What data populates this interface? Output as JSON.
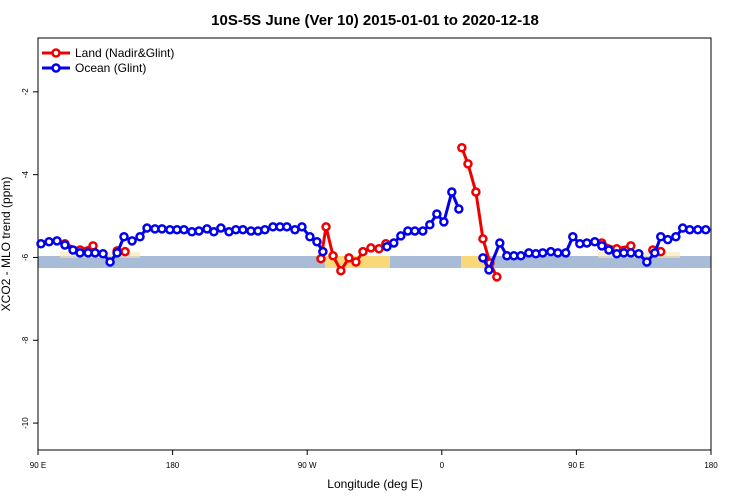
{
  "chart_data": {
    "type": "line",
    "title": "10S-5S June (Ver 10)   2015-01-01 to 2020-12-18",
    "x_label": "Longitude (deg E)",
    "y_label": "XCO2 - MLO trend (ppm)",
    "xlim": [
      90,
      540
    ],
    "ylim": [
      -10.65,
      -0.7
    ],
    "xticks": [
      {
        "value": 90,
        "label": "90 E"
      },
      180,
      {
        "value": 270,
        "label": "90 W"
      },
      {
        "value": 360,
        "label": "0"
      },
      {
        "value": 450,
        "label": "90 E"
      },
      {
        "value": 540,
        "label": "180"
      }
    ],
    "yticks": [
      -2,
      -4,
      -6,
      -8,
      -10
    ],
    "legend": "top-left",
    "series": [
      {
        "name": "Land (Nadir&Glint)",
        "color": "#ee0000",
        "x": [
          108.0,
          118.1,
          126.8,
          142.9,
          148.2,
          279.2,
          282.6,
          287.3,
          292.5,
          297.9,
          302.6,
          307.3,
          312.6,
          318.0,
          322.6,
          373.4,
          377.5,
          382.8,
          387.5,
          392.2,
          396.8,
          467.0,
          477.0,
          486.4,
          501.1,
          506.4
        ],
        "values": [
          -5.67,
          -5.82,
          -5.72,
          -5.84,
          -5.86,
          -6.03,
          -5.26,
          -5.96,
          -6.32,
          -6.01,
          -6.11,
          -5.86,
          -5.77,
          -5.79,
          -5.67,
          -3.35,
          -3.74,
          -4.42,
          -5.55,
          -6.13,
          -6.47,
          -5.65,
          -5.79,
          -5.72,
          -5.82,
          -5.86
        ]
      },
      {
        "name": "Ocean (Glint)",
        "color": "#0000ee",
        "x": [
          92.0,
          97.4,
          102.7,
          108.0,
          113.4,
          118.1,
          123.5,
          128.2,
          133.5,
          138.2,
          142.9,
          147.5,
          152.9,
          158.2,
          162.9,
          168.2,
          172.9,
          178.2,
          182.9,
          187.6,
          192.9,
          197.6,
          203.0,
          207.6,
          212.3,
          217.7,
          222.3,
          227.0,
          232.4,
          237.1,
          241.7,
          247.1,
          251.8,
          256.4,
          261.8,
          266.5,
          271.8,
          276.5,
          280.5,
          323.3,
          327.9,
          332.6,
          337.3,
          342.0,
          347.3,
          352.0,
          356.7,
          361.4,
          366.7,
          371.4,
          387.5,
          391.5,
          398.8,
          403.5,
          408.2,
          412.9,
          418.2,
          422.9,
          427.5,
          432.9,
          437.6,
          442.9,
          447.6,
          452.3,
          457.0,
          462.3,
          467.0,
          471.7,
          477.0,
          481.7,
          486.4,
          491.7,
          497.1,
          502.4,
          506.4,
          511.1,
          516.5,
          521.1,
          525.8,
          531.2,
          536.5
        ],
        "values": [
          -5.67,
          -5.62,
          -5.6,
          -5.7,
          -5.82,
          -5.89,
          -5.89,
          -5.89,
          -5.91,
          -6.11,
          -5.89,
          -5.5,
          -5.6,
          -5.5,
          -5.29,
          -5.31,
          -5.31,
          -5.33,
          -5.33,
          -5.33,
          -5.38,
          -5.36,
          -5.31,
          -5.38,
          -5.29,
          -5.38,
          -5.33,
          -5.33,
          -5.36,
          -5.36,
          -5.33,
          -5.26,
          -5.26,
          -5.26,
          -5.33,
          -5.26,
          -5.5,
          -5.62,
          -5.86,
          -5.74,
          -5.65,
          -5.48,
          -5.36,
          -5.36,
          -5.36,
          -5.21,
          -4.95,
          -5.14,
          -4.42,
          -4.83,
          -6.01,
          -6.3,
          -5.65,
          -5.96,
          -5.96,
          -5.96,
          -5.89,
          -5.91,
          -5.89,
          -5.86,
          -5.89,
          -5.89,
          -5.5,
          -5.67,
          -5.65,
          -5.62,
          -5.72,
          -5.82,
          -5.91,
          -5.89,
          -5.89,
          -5.91,
          -6.11,
          -5.89,
          -5.5,
          -5.57,
          -5.5,
          -5.29,
          -5.33,
          -5.33,
          -5.33
        ]
      }
    ]
  }
}
